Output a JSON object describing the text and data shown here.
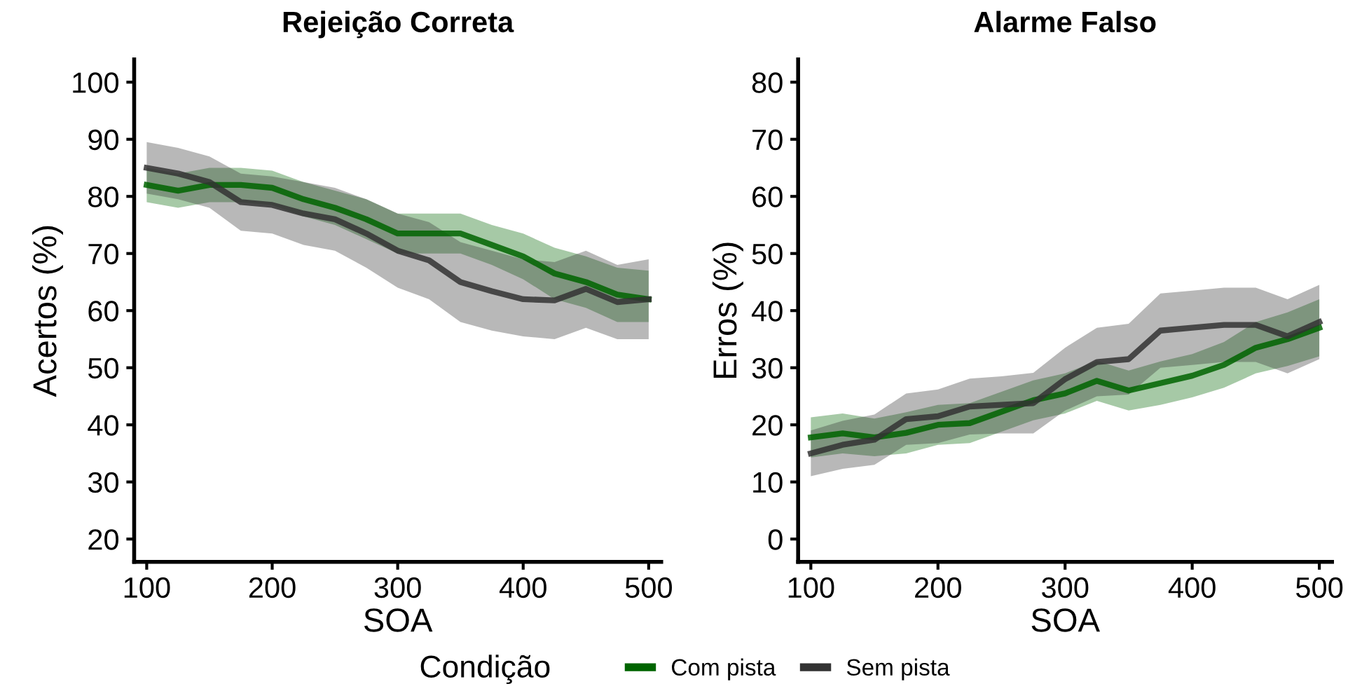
{
  "chart_data": [
    {
      "type": "line",
      "title": "Rejeição Correta",
      "xlabel": "SOA",
      "ylabel": "Acertos (%)",
      "xlim": [
        90,
        510
      ],
      "xticks": [
        100,
        200,
        300,
        400,
        500
      ],
      "ylim": [
        16,
        104
      ],
      "yticks": [
        20,
        30,
        40,
        50,
        60,
        70,
        80,
        90,
        100
      ],
      "grid": false,
      "legend": "bottom",
      "legend_title": "Condição",
      "line_style": "solid",
      "marker": "none",
      "x": [
        100,
        125,
        150,
        175,
        200,
        225,
        250,
        275,
        300,
        325,
        350,
        375,
        400,
        425,
        450,
        475,
        500
      ],
      "series": [
        {
          "name": "Com pista",
          "color": "#006400",
          "values": [
            82,
            81,
            82,
            82,
            81.5,
            79.5,
            78,
            76,
            73.5,
            73.5,
            73.5,
            71.5,
            69.5,
            66.5,
            65,
            62.8,
            62
          ],
          "lower": [
            79,
            78,
            79,
            79,
            78.5,
            76.5,
            75,
            72.5,
            70,
            70,
            70,
            68,
            65.5,
            62,
            60.5,
            58,
            58
          ],
          "upper": [
            85,
            84,
            85,
            85,
            84.5,
            82.5,
            81,
            79.5,
            77,
            77,
            77,
            75,
            73.5,
            71,
            69.5,
            67.5,
            67
          ]
        },
        {
          "name": "Sem pista",
          "color": "#333333",
          "values": [
            85,
            84,
            82.5,
            79,
            78.5,
            77,
            76,
            73.5,
            70.5,
            68.8,
            65,
            63.4,
            62,
            61.8,
            63.8,
            61.5,
            62
          ],
          "lower": [
            80.5,
            79.5,
            78,
            74,
            73.5,
            71.5,
            70.5,
            67.5,
            64,
            62,
            58,
            56.5,
            55.5,
            55,
            57,
            55,
            55
          ],
          "upper": [
            89.5,
            88.5,
            87,
            84,
            83.5,
            82.5,
            81.5,
            79.5,
            77,
            75.5,
            72,
            70.5,
            69,
            68.5,
            70.5,
            68,
            69
          ]
        }
      ]
    },
    {
      "type": "line",
      "title": "Alarme Falso",
      "xlabel": "SOA",
      "ylabel": "Erros (%)",
      "xlim": [
        90,
        510
      ],
      "xticks": [
        100,
        200,
        300,
        400,
        500
      ],
      "ylim": [
        -4,
        84
      ],
      "yticks": [
        0,
        10,
        20,
        30,
        40,
        50,
        60,
        70,
        80
      ],
      "grid": false,
      "line_style": "solid",
      "marker": "none",
      "x": [
        100,
        125,
        150,
        175,
        200,
        225,
        250,
        275,
        300,
        325,
        350,
        375,
        400,
        425,
        450,
        475,
        500
      ],
      "series": [
        {
          "color": "#006400",
          "values": [
            17.8,
            18.5,
            17.8,
            18.6,
            20,
            20.3,
            22.3,
            24.3,
            25.5,
            27.7,
            26,
            27.3,
            28.6,
            30.5,
            33.5,
            35,
            37
          ],
          "lower": [
            14.3,
            15,
            14.5,
            15,
            16.5,
            16.8,
            18.8,
            20.8,
            22,
            24.2,
            22.5,
            23.5,
            24.8,
            26.5,
            29,
            30.3,
            32
          ],
          "upper": [
            21.3,
            22,
            21.1,
            22.2,
            23.5,
            23.8,
            25.8,
            27.8,
            29,
            31.2,
            29.5,
            31.1,
            32.4,
            34.5,
            38,
            39.7,
            42
          ]
        },
        {
          "color": "#333333",
          "values": [
            15,
            16.5,
            17.4,
            21,
            21.5,
            23.2,
            23.5,
            23.8,
            28,
            31,
            31.5,
            36.5,
            37,
            37.5,
            37.5,
            35.5,
            38
          ],
          "lower": [
            11,
            12.3,
            13,
            16.5,
            16.8,
            18.3,
            18.5,
            18.5,
            22.5,
            25,
            25.3,
            30,
            30.5,
            31,
            31,
            29,
            31.5
          ],
          "upper": [
            19,
            20.7,
            21.8,
            25.5,
            26.2,
            28.1,
            28.5,
            29.1,
            33.5,
            37,
            37.7,
            43,
            43.5,
            44,
            44,
            42,
            44.5
          ]
        }
      ]
    }
  ]
}
